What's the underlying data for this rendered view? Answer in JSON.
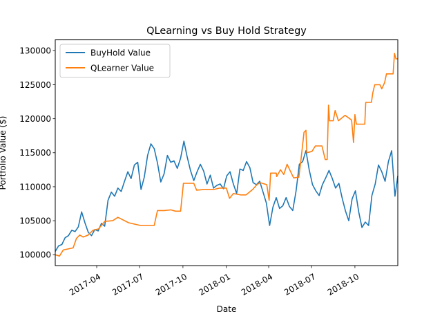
{
  "chart_data": {
    "type": "line",
    "title": "QLearning vs Buy Hold Strategy",
    "xlabel": "Date",
    "ylabel": "Portfolio Value ($)",
    "x_range": [
      "2017-01-03",
      "2018-12-31"
    ],
    "ylim": [
      98400,
      131600
    ],
    "x_ticks": [
      "2017-04",
      "2017-07",
      "2017-10",
      "2018-01",
      "2018-04",
      "2018-07",
      "2018-10"
    ],
    "y_ticks": [
      "100000",
      "105000",
      "110000",
      "115000",
      "120000",
      "125000",
      "130000"
    ],
    "legend_position": "top-left",
    "grid": false,
    "series": [
      {
        "name": "BuyHold Value",
        "color": "#1f77b4",
        "points": [
          [
            "2017-01-03",
            100500
          ],
          [
            "2017-01-10",
            101300
          ],
          [
            "2017-01-17",
            101500
          ],
          [
            "2017-01-24",
            102500
          ],
          [
            "2017-01-31",
            102800
          ],
          [
            "2017-02-07",
            103600
          ],
          [
            "2017-02-14",
            103400
          ],
          [
            "2017-02-21",
            104100
          ],
          [
            "2017-02-28",
            106300
          ],
          [
            "2017-03-07",
            104700
          ],
          [
            "2017-03-14",
            103300
          ],
          [
            "2017-03-21",
            102800
          ],
          [
            "2017-03-28",
            103700
          ],
          [
            "2017-04-04",
            103500
          ],
          [
            "2017-04-11",
            104600
          ],
          [
            "2017-04-18",
            104200
          ],
          [
            "2017-04-25",
            108000
          ],
          [
            "2017-05-02",
            109200
          ],
          [
            "2017-05-09",
            108600
          ],
          [
            "2017-05-16",
            109800
          ],
          [
            "2017-05-23",
            109300
          ],
          [
            "2017-05-30",
            110800
          ],
          [
            "2017-06-06",
            112200
          ],
          [
            "2017-06-13",
            111200
          ],
          [
            "2017-06-20",
            113200
          ],
          [
            "2017-06-27",
            113600
          ],
          [
            "2017-07-04",
            109600
          ],
          [
            "2017-07-11",
            111400
          ],
          [
            "2017-07-18",
            114600
          ],
          [
            "2017-07-25",
            116300
          ],
          [
            "2017-08-01",
            115600
          ],
          [
            "2017-08-08",
            113500
          ],
          [
            "2017-08-15",
            110700
          ],
          [
            "2017-08-22",
            111900
          ],
          [
            "2017-08-29",
            114600
          ],
          [
            "2017-09-05",
            113600
          ],
          [
            "2017-09-12",
            113800
          ],
          [
            "2017-09-19",
            112700
          ],
          [
            "2017-09-26",
            114200
          ],
          [
            "2017-10-03",
            116700
          ],
          [
            "2017-10-10",
            114400
          ],
          [
            "2017-10-17",
            112400
          ],
          [
            "2017-10-24",
            110900
          ],
          [
            "2017-10-31",
            112200
          ],
          [
            "2017-11-07",
            113300
          ],
          [
            "2017-11-14",
            112300
          ],
          [
            "2017-11-21",
            110400
          ],
          [
            "2017-11-28",
            111700
          ],
          [
            "2017-12-05",
            109800
          ],
          [
            "2017-12-12",
            110200
          ],
          [
            "2017-12-19",
            110400
          ],
          [
            "2017-12-26",
            109700
          ],
          [
            "2018-01-02",
            111600
          ],
          [
            "2018-01-09",
            112200
          ],
          [
            "2018-01-16",
            110400
          ],
          [
            "2018-01-23",
            109000
          ],
          [
            "2018-01-30",
            112600
          ],
          [
            "2018-02-06",
            112400
          ],
          [
            "2018-02-13",
            113700
          ],
          [
            "2018-02-20",
            112800
          ],
          [
            "2018-02-27",
            110600
          ],
          [
            "2018-03-06",
            110300
          ],
          [
            "2018-03-13",
            110800
          ],
          [
            "2018-03-20",
            109200
          ],
          [
            "2018-03-27",
            107600
          ],
          [
            "2018-04-03",
            104300
          ],
          [
            "2018-04-10",
            107000
          ],
          [
            "2018-04-17",
            108400
          ],
          [
            "2018-04-24",
            106800
          ],
          [
            "2018-05-01",
            107200
          ],
          [
            "2018-05-08",
            108400
          ],
          [
            "2018-05-15",
            107100
          ],
          [
            "2018-05-22",
            106500
          ],
          [
            "2018-05-29",
            109300
          ],
          [
            "2018-06-05",
            113300
          ],
          [
            "2018-06-12",
            113700
          ],
          [
            "2018-06-19",
            115300
          ],
          [
            "2018-06-26",
            112500
          ],
          [
            "2018-07-03",
            110300
          ],
          [
            "2018-07-10",
            109400
          ],
          [
            "2018-07-17",
            108700
          ],
          [
            "2018-07-24",
            110300
          ],
          [
            "2018-07-31",
            111300
          ],
          [
            "2018-08-07",
            112400
          ],
          [
            "2018-08-14",
            111200
          ],
          [
            "2018-08-21",
            109800
          ],
          [
            "2018-08-28",
            110500
          ],
          [
            "2018-09-04",
            108300
          ],
          [
            "2018-09-11",
            106400
          ],
          [
            "2018-09-18",
            105000
          ],
          [
            "2018-09-25",
            108200
          ],
          [
            "2018-10-02",
            109400
          ],
          [
            "2018-10-09",
            106300
          ],
          [
            "2018-10-16",
            104000
          ],
          [
            "2018-10-23",
            104800
          ],
          [
            "2018-10-30",
            104300
          ],
          [
            "2018-11-06",
            108700
          ],
          [
            "2018-11-13",
            110400
          ],
          [
            "2018-11-20",
            113200
          ],
          [
            "2018-11-27",
            112200
          ],
          [
            "2018-12-04",
            110800
          ],
          [
            "2018-12-11",
            113700
          ],
          [
            "2018-12-18",
            115300
          ],
          [
            "2018-12-25",
            108600
          ],
          [
            "2018-12-31",
            111600
          ]
        ]
      },
      {
        "name": "QLearner Value",
        "color": "#ff7f0e",
        "points": [
          [
            "2017-01-03",
            100000
          ],
          [
            "2017-01-12",
            99800
          ],
          [
            "2017-01-20",
            100700
          ],
          [
            "2017-02-10",
            101000
          ],
          [
            "2017-02-17",
            102400
          ],
          [
            "2017-02-24",
            102900
          ],
          [
            "2017-03-03",
            102600
          ],
          [
            "2017-03-14",
            102900
          ],
          [
            "2017-03-24",
            103600
          ],
          [
            "2017-04-05",
            103800
          ],
          [
            "2017-04-18",
            104900
          ],
          [
            "2017-05-05",
            105000
          ],
          [
            "2017-05-16",
            105500
          ],
          [
            "2017-06-08",
            104700
          ],
          [
            "2017-07-03",
            104300
          ],
          [
            "2017-08-01",
            104300
          ],
          [
            "2017-08-08",
            106500
          ],
          [
            "2017-08-22",
            106500
          ],
          [
            "2017-09-05",
            106600
          ],
          [
            "2017-09-15",
            106400
          ],
          [
            "2017-09-26",
            106400
          ],
          [
            "2017-10-02",
            110500
          ],
          [
            "2017-10-24",
            110500
          ],
          [
            "2017-10-30",
            109500
          ],
          [
            "2017-11-15",
            109600
          ],
          [
            "2017-12-06",
            109600
          ],
          [
            "2017-12-18",
            109800
          ],
          [
            "2018-01-01",
            109800
          ],
          [
            "2018-01-08",
            108300
          ],
          [
            "2018-01-16",
            109000
          ],
          [
            "2018-02-01",
            108800
          ],
          [
            "2018-02-12",
            108800
          ],
          [
            "2018-02-26",
            109600
          ],
          [
            "2018-03-07",
            110300
          ],
          [
            "2018-03-14",
            110600
          ],
          [
            "2018-03-28",
            110300
          ],
          [
            "2018-04-02",
            108000
          ],
          [
            "2018-04-05",
            112000
          ],
          [
            "2018-04-17",
            112000
          ],
          [
            "2018-04-18",
            111500
          ],
          [
            "2018-04-26",
            112500
          ],
          [
            "2018-05-03",
            111800
          ],
          [
            "2018-05-10",
            113300
          ],
          [
            "2018-05-17",
            112300
          ],
          [
            "2018-05-24",
            111300
          ],
          [
            "2018-06-04",
            111400
          ],
          [
            "2018-06-08",
            113700
          ],
          [
            "2018-06-15",
            118000
          ],
          [
            "2018-06-19",
            118300
          ],
          [
            "2018-06-21",
            115000
          ],
          [
            "2018-07-02",
            115200
          ],
          [
            "2018-07-09",
            116000
          ],
          [
            "2018-07-23",
            116000
          ],
          [
            "2018-07-30",
            114000
          ],
          [
            "2018-08-03",
            114000
          ],
          [
            "2018-08-06",
            122000
          ],
          [
            "2018-08-08",
            119700
          ],
          [
            "2018-08-16",
            119700
          ],
          [
            "2018-08-20",
            121200
          ],
          [
            "2018-08-27",
            119700
          ],
          [
            "2018-09-10",
            120500
          ],
          [
            "2018-09-24",
            119800
          ],
          [
            "2018-09-28",
            116500
          ],
          [
            "2018-10-01",
            120600
          ],
          [
            "2018-10-04",
            119200
          ],
          [
            "2018-10-22",
            119200
          ],
          [
            "2018-10-24",
            122400
          ],
          [
            "2018-11-05",
            122400
          ],
          [
            "2018-11-08",
            123800
          ],
          [
            "2018-11-12",
            125000
          ],
          [
            "2018-11-23",
            125000
          ],
          [
            "2018-11-27",
            124400
          ],
          [
            "2018-12-03",
            125300
          ],
          [
            "2018-12-07",
            126600
          ],
          [
            "2018-12-21",
            126600
          ],
          [
            "2018-12-24",
            129600
          ],
          [
            "2018-12-27",
            128800
          ],
          [
            "2018-12-31",
            128800
          ]
        ]
      }
    ]
  }
}
